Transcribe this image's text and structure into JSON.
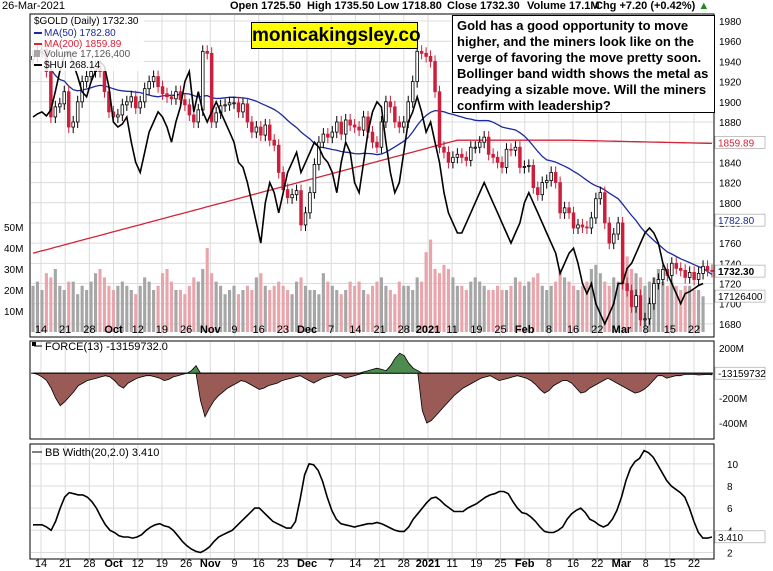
{
  "header": {
    "date": "26-Mar-2021",
    "open": "Open 1725.50",
    "high": "High 1735.50",
    "low": "Low 1718.80",
    "close": "Close 1732.30",
    "volume": "Volume 17.1M",
    "chg": "Chg +7.20 (+0.42%)",
    "chg_arrow": "▲"
  },
  "watermark": "monicakingsley.co",
  "note": "Gold has a good opportunity to move higher, and the miners look like on the verge of favoring the move pretty soon. Bollinger band width shows the metal as readying a sizable move. Will the miners  confirm with leadership?",
  "legend": {
    "symbol": "$GOLD (Daily) 1732.30",
    "ma50": "MA(50) 1782.80",
    "ma200": "MA(200) 1859.89",
    "volume": "Volume 17,126,400",
    "hui": "$HUI 268.14"
  },
  "colors": {
    "up": "#000000",
    "down": "#cc1f3c",
    "ma50": "#1c2aa0",
    "ma200": "#d4243a",
    "vol_up": "#a6a6a6",
    "vol_down": "#e8a5ac",
    "force_pos": "#4f8a4f",
    "force_neg": "#9a5a55",
    "grid": "#dcdcdc"
  },
  "chart_data": [
    {
      "type": "candlestick",
      "title": "$GOLD (Daily)",
      "y_ticks": [
        "1980",
        "1960",
        "1940",
        "1920",
        "1900",
        "1880",
        "1860",
        "1840",
        "1820",
        "1800",
        "1780",
        "1760",
        "1740",
        "1720",
        "1700",
        "1680"
      ],
      "ylim": [
        1668,
        1986
      ],
      "last_close": "1732.30",
      "ma50_last": "1782.80",
      "ma200_last": "1859.89",
      "volume_last": "17126400",
      "volume_ticks": [
        "50M",
        "40M",
        "30M",
        "20M",
        "10M"
      ],
      "x_labels": [
        "14",
        "21",
        "28",
        "Oct",
        "12",
        "19",
        "26",
        "Nov",
        "9",
        "16",
        "23",
        "Dec",
        "7",
        "14",
        "21",
        "28",
        "2021",
        "11",
        "19",
        "25",
        "Feb",
        "8",
        "16",
        "22",
        "Mar",
        "8",
        "15",
        "22"
      ],
      "gold_close": [
        1945,
        1950,
        1952,
        1930,
        1885,
        1895,
        1898,
        1910,
        1875,
        1880,
        1900,
        1920,
        1925,
        1930,
        1935,
        1930,
        1910,
        1890,
        1885,
        1887,
        1897,
        1900,
        1905,
        1894,
        1900,
        1913,
        1920,
        1925,
        1915,
        1908,
        1905,
        1903,
        1910,
        1902,
        1897,
        1887,
        1880,
        1892,
        1950,
        1948,
        1880,
        1889,
        1896,
        1897,
        1899,
        1899,
        1890,
        1898,
        1880,
        1870,
        1875,
        1867,
        1877,
        1862,
        1857,
        1830,
        1813,
        1805,
        1808,
        1812,
        1778,
        1790,
        1810,
        1838,
        1860,
        1868,
        1865,
        1870,
        1880,
        1868,
        1882,
        1877,
        1875,
        1872,
        1885,
        1870,
        1860,
        1855,
        1880,
        1900,
        1895,
        1880,
        1875,
        1880,
        1900,
        1920,
        1950,
        1948,
        1945,
        1940,
        1910,
        1855,
        1850,
        1840,
        1845,
        1848,
        1845,
        1842,
        1855,
        1855,
        1860,
        1865,
        1848,
        1845,
        1840,
        1835,
        1853,
        1852,
        1855,
        1835,
        1836,
        1837,
        1815,
        1808,
        1820,
        1822,
        1830,
        1820,
        1790,
        1795,
        1790,
        1775,
        1778,
        1776,
        1775,
        1785,
        1804,
        1810,
        1780,
        1760,
        1769,
        1780,
        1720,
        1713,
        1697,
        1708,
        1684,
        1685,
        1700,
        1720,
        1724,
        1734,
        1728,
        1740,
        1735,
        1733,
        1726,
        1731,
        1724,
        1730,
        1737,
        1733,
        1732
      ],
      "volume": [
        22,
        24,
        20,
        28,
        26,
        30,
        22,
        20,
        24,
        24,
        18,
        22,
        20,
        24,
        28,
        30,
        26,
        22,
        20,
        22,
        24,
        22,
        20,
        18,
        22,
        26,
        24,
        20,
        22,
        28,
        30,
        24,
        20,
        20,
        18,
        22,
        26,
        24,
        30,
        40,
        28,
        24,
        22,
        18,
        20,
        22,
        18,
        20,
        22,
        20,
        26,
        28,
        22,
        20,
        22,
        24,
        22,
        20,
        18,
        24,
        26,
        22,
        20,
        20,
        18,
        28,
        24,
        22,
        20,
        18,
        20,
        24,
        22,
        24,
        20,
        18,
        22,
        24,
        26,
        22,
        20,
        18,
        24,
        22,
        22,
        20,
        26,
        24,
        38,
        44,
        30,
        28,
        32,
        30,
        26,
        22,
        22,
        20,
        24,
        26,
        24,
        22,
        20,
        20,
        22,
        20,
        20,
        22,
        26,
        24,
        22,
        24,
        26,
        28,
        22,
        20,
        22,
        24,
        30,
        26,
        24,
        22,
        20,
        22,
        24,
        30,
        32,
        28,
        24,
        22,
        26,
        24,
        32,
        36,
        30,
        28,
        26,
        22,
        24,
        26,
        30,
        24,
        22,
        24,
        22,
        20,
        22,
        22,
        20,
        20,
        17
      ],
      "hui": [
        1885,
        1888,
        1890,
        1886,
        1892,
        1910,
        1930,
        1945,
        1950,
        1938,
        1925,
        1910,
        1905,
        1920,
        1930,
        1940,
        1935,
        1915,
        1880,
        1875,
        1878,
        1885,
        1860,
        1840,
        1830,
        1850,
        1870,
        1880,
        1890,
        1885,
        1875,
        1860,
        1880,
        1895,
        1920,
        1930,
        1890,
        1910,
        1890,
        1880,
        1890,
        1900,
        1890,
        1880,
        1870,
        1860,
        1840,
        1835,
        1820,
        1800,
        1780,
        1760,
        1800,
        1820,
        1810,
        1790,
        1810,
        1830,
        1840,
        1850,
        1830,
        1840,
        1850,
        1860,
        1855,
        1845,
        1840,
        1830,
        1810,
        1840,
        1860,
        1850,
        1820,
        1810,
        1840,
        1870,
        1890,
        1900,
        1895,
        1860,
        1830,
        1810,
        1820,
        1850,
        1880,
        1890,
        1905,
        1890,
        1870,
        1880,
        1860,
        1840,
        1810,
        1790,
        1780,
        1770,
        1770,
        1780,
        1790,
        1800,
        1810,
        1820,
        1810,
        1800,
        1790,
        1780,
        1770,
        1760,
        1770,
        1780,
        1800,
        1810,
        1800,
        1790,
        1780,
        1770,
        1760,
        1750,
        1730,
        1740,
        1750,
        1755,
        1740,
        1720,
        1710,
        1720,
        1700,
        1690,
        1680,
        1690,
        1700,
        1720,
        1720,
        1735,
        1740,
        1750,
        1760,
        1770,
        1775,
        1770,
        1760,
        1740,
        1730,
        1720,
        1710,
        1700,
        1710,
        1712,
        1715,
        1718,
        1720
      ]
    },
    {
      "type": "area",
      "title": "FORCE(13)",
      "last_value": "-13159732.0",
      "right_label": "-13159732",
      "y_ticks": [
        "200M",
        "-200M",
        "-400M"
      ],
      "ylim": [
        -520,
        250
      ],
      "values": [
        0,
        -10,
        -30,
        -60,
        -120,
        -200,
        -260,
        -230,
        -190,
        -150,
        -100,
        -80,
        -60,
        -50,
        -40,
        -30,
        -20,
        -30,
        -60,
        -100,
        -120,
        -80,
        -60,
        -40,
        -30,
        -20,
        -20,
        -30,
        -40,
        -60,
        -50,
        -30,
        -20,
        -10,
        0,
        20,
        60,
        -220,
        -350,
        -280,
        -220,
        -180,
        -150,
        -120,
        -100,
        -80,
        -60,
        -70,
        -90,
        -110,
        -130,
        -120,
        -100,
        -90,
        -80,
        -60,
        -50,
        -40,
        -30,
        -20,
        -40,
        -60,
        -80,
        -60,
        -40,
        -30,
        -20,
        -10,
        -20,
        -40,
        -30,
        -20,
        -10,
        10,
        20,
        30,
        40,
        30,
        20,
        60,
        120,
        160,
        140,
        80,
        40,
        20,
        -300,
        -400,
        -380,
        -340,
        -300,
        -260,
        -220,
        -180,
        -150,
        -120,
        -100,
        -80,
        -60,
        -40,
        -30,
        -20,
        -40,
        -60,
        -50,
        -40,
        -30,
        -20,
        -30,
        -40,
        -60,
        -90,
        -130,
        -160,
        -140,
        -100,
        -80,
        -60,
        -60,
        -80,
        -120,
        -160,
        -150,
        -120,
        -100,
        -80,
        -60,
        -40,
        -60,
        -80,
        -100,
        -120,
        -140,
        -160,
        -150,
        -130,
        -100,
        -60,
        -20,
        -20,
        -40,
        -30,
        -20,
        -20,
        -10,
        -10,
        -10,
        -15,
        -12,
        -10,
        -13
      ]
    },
    {
      "type": "line",
      "title": "BB Width(20,2.0)",
      "last_value": "3.410",
      "y_ticks": [
        "10",
        "8",
        "6",
        "4",
        "2"
      ],
      "ylim": [
        1.5,
        11.7
      ],
      "values": [
        4.5,
        4.5,
        4.5,
        4.3,
        4.0,
        4.8,
        6.0,
        7.0,
        7.4,
        7.3,
        7.2,
        7.2,
        7.0,
        6.6,
        6.0,
        5.2,
        4.5,
        4.0,
        3.8,
        3.5,
        3.4,
        3.4,
        3.3,
        3.4,
        3.6,
        4.0,
        4.3,
        4.5,
        4.6,
        4.4,
        4.3,
        4.0,
        3.5,
        3.0,
        2.6,
        2.3,
        2.1,
        2.0,
        2.2,
        2.5,
        3.0,
        3.4,
        3.6,
        3.8,
        4.0,
        4.4,
        4.8,
        5.2,
        5.6,
        6.0,
        6.0,
        5.6,
        5.2,
        4.8,
        4.6,
        4.4,
        4.2,
        4.2,
        4.8,
        6.8,
        9.0,
        10.0,
        9.9,
        9.4,
        8.4,
        7.0,
        5.8,
        5.0,
        4.6,
        4.5,
        4.4,
        4.3,
        4.4,
        4.5,
        4.6,
        4.6,
        4.7,
        4.6,
        4.4,
        4.2,
        4.0,
        3.9,
        3.9,
        4.3,
        5.0,
        5.5,
        6.0,
        6.5,
        6.9,
        7.0,
        6.7,
        6.3,
        6.0,
        5.7,
        5.7,
        5.7,
        6.0,
        6.2,
        6.4,
        6.7,
        7.0,
        7.2,
        7.3,
        7.5,
        7.5,
        7.3,
        6.6,
        6.0,
        5.6,
        5.5,
        5.2,
        4.8,
        4.3,
        3.9,
        3.8,
        3.8,
        4.0,
        4.3,
        5.0,
        5.5,
        5.8,
        6.0,
        5.6,
        5.0,
        4.8,
        4.5,
        4.3,
        4.5,
        5.0,
        5.8,
        7.0,
        8.5,
        9.6,
        10.2,
        10.5,
        11.2,
        11.0,
        10.6,
        9.9,
        9.2,
        8.5,
        8.0,
        7.7,
        7.4,
        7.0,
        6.0,
        4.8,
        3.8,
        3.3,
        3.3,
        3.4
      ]
    }
  ]
}
